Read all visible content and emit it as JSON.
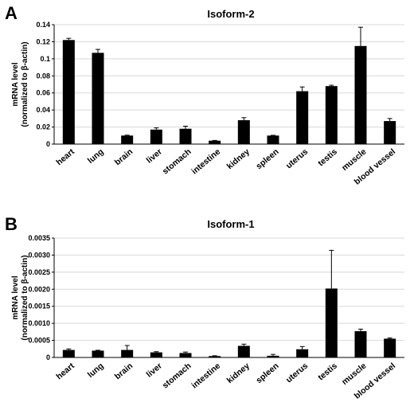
{
  "chart_data": [
    {
      "panel": "A",
      "type": "bar",
      "title": "Isoform-2",
      "ylabel_lines": [
        "mRNA level",
        "(normalized to β-actin)"
      ],
      "xlabel": "",
      "categories": [
        "heart",
        "lung",
        "brain",
        "liver",
        "stomach",
        "intestine",
        "kidney",
        "spleen",
        "uterus",
        "testis",
        "muscle",
        "blood vessel"
      ],
      "values": [
        0.122,
        0.107,
        0.01,
        0.017,
        0.018,
        0.004,
        0.028,
        0.01,
        0.062,
        0.068,
        0.115,
        0.027
      ],
      "errors": [
        0.002,
        0.004,
        0.0005,
        0.002,
        0.003,
        0.0003,
        0.003,
        0.0003,
        0.005,
        0.001,
        0.022,
        0.003
      ],
      "ylim": [
        0,
        0.14
      ],
      "yticks": [
        "0",
        "0.02",
        "0.04",
        "0.06",
        "0.08",
        "0.1",
        "0.12",
        "0.14"
      ],
      "grid": true,
      "bar_color": "#000000",
      "grid_color": "#d8d8d8"
    },
    {
      "panel": "B",
      "type": "bar",
      "title": "Isoform-1",
      "ylabel_lines": [
        "mRNA level",
        "(normalized to β-actin)"
      ],
      "xlabel": "",
      "categories": [
        "heart",
        "lung",
        "brain",
        "liver",
        "stomach",
        "intestine",
        "kidney",
        "spleen",
        "uterus",
        "testis",
        "muscle",
        "blood vessel"
      ],
      "values": [
        0.00022,
        0.0002,
        0.00022,
        0.00015,
        0.00013,
        4e-05,
        0.00034,
        5e-05,
        0.00024,
        0.00202,
        0.00077,
        0.00055
      ],
      "errors": [
        3e-05,
        1e-05,
        0.00013,
        2e-05,
        3e-05,
        1e-05,
        5e-05,
        4e-05,
        8e-05,
        0.00112,
        6e-05,
        2e-05
      ],
      "ylim": [
        0,
        0.0035
      ],
      "yticks": [
        "0",
        "0.0005",
        "0.0010",
        "0.0015",
        "0.0020",
        "0.0025",
        "0.0030",
        "0.0035"
      ],
      "grid": true,
      "bar_color": "#000000",
      "grid_color": "#d8d8d8"
    }
  ]
}
